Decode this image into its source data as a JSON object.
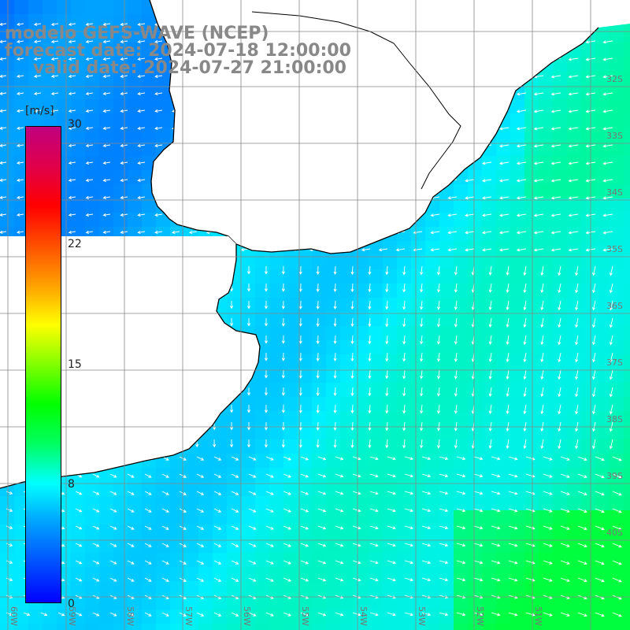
{
  "title": {
    "line1": "modelo GEFS-WAVE (NCEP)",
    "line2": "forecast date: 2024-07-18 12:00:00",
    "line3": "valid date: 2024-07-27 21:00:00"
  },
  "colorbar": {
    "unit": "[m/s]",
    "min": 0,
    "max": 30,
    "tick_labels": [
      "30",
      "22",
      "15",
      "8",
      "0"
    ],
    "tick_values": [
      30,
      22,
      15,
      8,
      0
    ],
    "colors": [
      "#0000ff",
      "#0050ff",
      "#00a0ff",
      "#00ffff",
      "#00ff60",
      "#00ff00",
      "#80ff00",
      "#ffff00",
      "#ffa000",
      "#ff5000",
      "#ff0000",
      "#e0004a",
      "#c0007f"
    ]
  },
  "map": {
    "lon_labels": [
      "60W",
      "59W",
      "58W",
      "57W",
      "56W",
      "55W",
      "54W",
      "53W",
      "52W",
      "51W"
    ],
    "lat_labels": [
      "32S",
      "33S",
      "34S",
      "35S",
      "36S",
      "37S",
      "38S",
      "39S",
      "40S"
    ],
    "land_color": "#ffffff",
    "coast_color": "#000000",
    "grid_color": "#888888",
    "arrow_color": "#ffffff"
  }
}
